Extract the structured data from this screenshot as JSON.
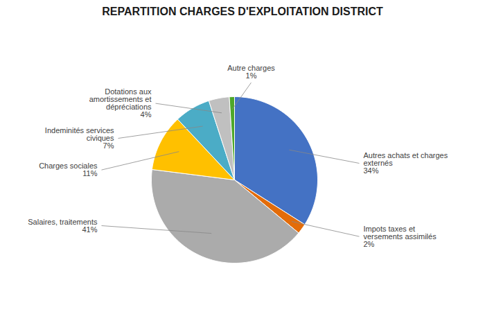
{
  "chart_data": {
    "type": "pie",
    "title": "REPARTITION CHARGES D'EXPLOITATION DISTRICT",
    "categories": [
      "Autres achats et charges\nexternés\n34%",
      "Impots taxes et\nversements assimilés\n2%",
      "Salaires, traitements\n41%",
      "Charges sociales\n11%",
      "Indeminités services\nciviques\n7%",
      "Dotations aux\namortissements et\ndépréciations\n4%",
      "Autre charges\n1%"
    ],
    "values": [
      34,
      2,
      41,
      11,
      7,
      4,
      1
    ],
    "colors": [
      "#4472C4",
      "#E36C0A",
      "#ABABAB",
      "#FFC000",
      "#4BACC6",
      "#C0C0C0",
      "#4EA72A"
    ]
  }
}
